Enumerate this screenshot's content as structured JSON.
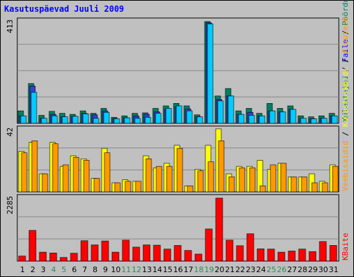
{
  "title": "Kasutuspäevad Juuli 2009",
  "colors": {
    "background": "#c0c0c0",
    "grid": "#888888",
    "pages": "#ff9900",
    "hits": "#ffff00",
    "visits": "#ffcc00",
    "bandwidth": "#ff0000",
    "visitors": "#008060",
    "pages_top": "#3040d0",
    "files": "#00ccff",
    "weekend_label": "#2e8b57",
    "weekday_label": "#000000"
  },
  "chart_data": [
    {
      "type": "bar",
      "panel": "top",
      "y_tick": "413",
      "ylim": [
        0,
        413
      ],
      "legend": [
        "Külastajad",
        "Faile",
        "Pöördumisi"
      ],
      "legend_colors": [
        "#008060",
        "#0000ff",
        "#008060"
      ],
      "categories": [
        "1",
        "2",
        "3",
        "4",
        "5",
        "6",
        "7",
        "8",
        "9",
        "10",
        "11",
        "12",
        "13",
        "14",
        "15",
        "16",
        "17",
        "18",
        "19",
        "20",
        "21",
        "22",
        "23",
        "24",
        "25",
        "26",
        "27",
        "28",
        "29",
        "30",
        "31"
      ],
      "series": [
        {
          "name": "Pöördumisi",
          "values": [
            50,
            160,
            32,
            48,
            40,
            36,
            50,
            40,
            60,
            24,
            30,
            40,
            42,
            60,
            70,
            80,
            70,
            34,
            410,
            110,
            140,
            50,
            60,
            40,
            80,
            60,
            70,
            30,
            26,
            30,
            40
          ]
        },
        {
          "name": "Külastajad",
          "values": [
            30,
            150,
            20,
            36,
            26,
            28,
            40,
            34,
            50,
            18,
            22,
            30,
            36,
            46,
            56,
            66,
            58,
            26,
            405,
            96,
            110,
            36,
            44,
            30,
            50,
            46,
            56,
            20,
            18,
            20,
            30
          ]
        },
        {
          "name": "Faile",
          "values": [
            30,
            125,
            20,
            30,
            26,
            28,
            38,
            20,
            44,
            18,
            22,
            20,
            24,
            40,
            60,
            70,
            50,
            26,
            400,
            90,
            110,
            36,
            32,
            30,
            50,
            46,
            56,
            20,
            18,
            20,
            30
          ]
        }
      ]
    },
    {
      "type": "bar",
      "panel": "middle",
      "y_tick": "42",
      "ylim": [
        0,
        42
      ],
      "legend": [
        "Veebisaidid",
        "Külastuskordi",
        "Arvuteid"
      ],
      "legend_colors": [
        "#ff9900",
        "#ffff00",
        "#ff9900"
      ],
      "categories": [
        "1",
        "2",
        "3",
        "4",
        "5",
        "6",
        "7",
        "8",
        "9",
        "10",
        "11",
        "12",
        "13",
        "14",
        "15",
        "16",
        "17",
        "18",
        "19",
        "20",
        "21",
        "22",
        "23",
        "24",
        "25",
        "26",
        "27",
        "28",
        "29",
        "30",
        "31"
      ],
      "series": [
        {
          "name": "Külastuskordi",
          "values": [
            27,
            33,
            12,
            33,
            17,
            24,
            22,
            9,
            29,
            6,
            8,
            7,
            24,
            16,
            19,
            31,
            4,
            15,
            31,
            42,
            12,
            17,
            17,
            21,
            15,
            19,
            10,
            10,
            12,
            7,
            18
          ]
        },
        {
          "name": "Arvuteid",
          "values": [
            26,
            34,
            12,
            32,
            18,
            23,
            21,
            9,
            26,
            6,
            7,
            7,
            22,
            17,
            17,
            29,
            4,
            14,
            20,
            34,
            10,
            16,
            16,
            4,
            18,
            19,
            10,
            10,
            6,
            6,
            17
          ]
        }
      ]
    },
    {
      "type": "bar",
      "panel": "bottom",
      "y_tick": "2285",
      "ylim": [
        0,
        2285
      ],
      "legend": [
        "KBaite"
      ],
      "legend_colors": [
        "#ff0000"
      ],
      "categories": [
        "1",
        "2",
        "3",
        "4",
        "5",
        "6",
        "7",
        "8",
        "9",
        "10",
        "11",
        "12",
        "13",
        "14",
        "15",
        "16",
        "17",
        "18",
        "19",
        "20",
        "21",
        "22",
        "23",
        "24",
        "25",
        "26",
        "27",
        "28",
        "29",
        "30",
        "31"
      ],
      "series": [
        {
          "name": "KBaite",
          "values": [
            180,
            1100,
            320,
            290,
            130,
            280,
            730,
            580,
            720,
            320,
            750,
            500,
            580,
            570,
            430,
            560,
            380,
            250,
            1150,
            2260,
            750,
            550,
            980,
            440,
            430,
            320,
            360,
            430,
            340,
            700,
            560
          ]
        }
      ]
    }
  ],
  "x_axis": {
    "labels": [
      "1",
      "2",
      "3",
      "4",
      "5",
      "6",
      "7",
      "8",
      "9",
      "10",
      "11",
      "12",
      "13",
      "14",
      "15",
      "16",
      "17",
      "18",
      "19",
      "20",
      "21",
      "22",
      "23",
      "24",
      "25",
      "26",
      "27",
      "28",
      "29",
      "30",
      "31"
    ],
    "weekend_days": [
      "4",
      "5",
      "11",
      "12",
      "18",
      "19",
      "25",
      "26"
    ]
  }
}
